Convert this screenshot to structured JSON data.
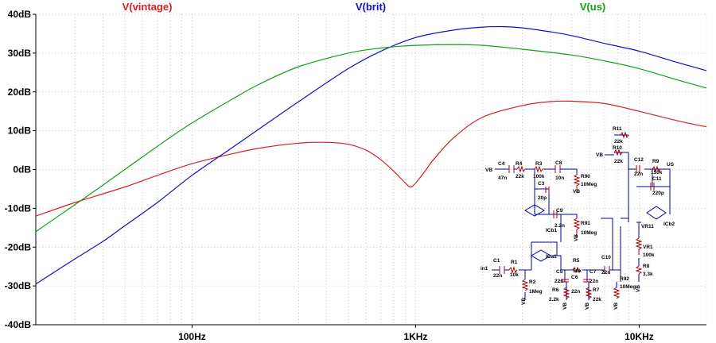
{
  "chart_data": {
    "type": "line",
    "x_scale": "log",
    "xlim": [
      20,
      20000
    ],
    "ylim": [
      -40,
      40
    ],
    "grid": true,
    "x_ticks": [
      {
        "value": 100,
        "label": "100Hz"
      },
      {
        "value": 1000,
        "label": "1KHz"
      },
      {
        "value": 10000,
        "label": "10KHz"
      }
    ],
    "y_ticks": [
      {
        "value": 40,
        "label": "40dB"
      },
      {
        "value": 30,
        "label": "30dB"
      },
      {
        "value": 20,
        "label": "20dB"
      },
      {
        "value": 10,
        "label": "10dB"
      },
      {
        "value": 0,
        "label": "0dB"
      },
      {
        "value": -10,
        "label": "-10dB"
      },
      {
        "value": -20,
        "label": "-20dB"
      },
      {
        "value": -30,
        "label": "-30dB"
      },
      {
        "value": -40,
        "label": "-40dB"
      }
    ],
    "series": [
      {
        "name": "V(vintage)",
        "color": "#d42020",
        "x": [
          20,
          30,
          50,
          70,
          100,
          150,
          200,
          300,
          400,
          500,
          600,
          700,
          800,
          900,
          950,
          1000,
          1100,
          1200,
          1500,
          2000,
          3000,
          4000,
          5000,
          7000,
          10000,
          15000,
          20000
        ],
        "y": [
          -12,
          -8.5,
          -4.5,
          -1.5,
          1.5,
          4,
          5.5,
          6.8,
          7,
          6.5,
          5,
          2.5,
          -0.5,
          -3.5,
          -4.5,
          -3.5,
          -0.5,
          2.5,
          8.5,
          13.5,
          16.5,
          17.5,
          17.6,
          17,
          15,
          12.5,
          11
        ]
      },
      {
        "name": "V(brit)",
        "color": "#1010c0",
        "x": [
          20,
          30,
          40,
          50,
          70,
          100,
          150,
          200,
          300,
          500,
          700,
          1000,
          1500,
          2000,
          2500,
          3000,
          4000,
          5000,
          7000,
          10000,
          15000,
          20000
        ],
        "y": [
          -29.5,
          -23,
          -18.5,
          -14.5,
          -8.5,
          -1.5,
          5.5,
          10.5,
          17.5,
          26,
          30.5,
          34,
          36,
          36.7,
          36.8,
          36.5,
          35.5,
          34.5,
          32.5,
          30.5,
          27.5,
          25.5
        ]
      },
      {
        "name": "V(us)",
        "color": "#10a010",
        "x": [
          20,
          30,
          40,
          50,
          70,
          100,
          150,
          200,
          300,
          500,
          700,
          1000,
          1500,
          2000,
          3000,
          5000,
          7000,
          10000,
          15000,
          20000
        ],
        "y": [
          -16,
          -9,
          -4,
          0,
          6,
          12,
          18,
          22,
          26.5,
          30,
          31.3,
          32,
          32.2,
          32,
          31,
          29.5,
          28,
          26,
          23,
          21
        ]
      }
    ]
  },
  "schematic": {
    "labels": {
      "vb1": "VB",
      "c4": "C4",
      "c4v": "47n",
      "r4": "R4",
      "r4v": "22k",
      "r3": "R3",
      "r3v": "100k",
      "c8": "C8",
      "c8v": "10n",
      "r90": "R90",
      "r90v": "10Meg",
      "c3": "C3",
      "c3v": "20p",
      "vb2": "VB",
      "c9": "C9",
      "c9v": "2.2n",
      "icb1": "ICb1",
      "r91": "R91",
      "r91v": "10Meg",
      "r11": "R11",
      "r11v": "22k",
      "vb3": "VB",
      "r10": "R10",
      "r10v": "22k",
      "c12": "C12",
      "c12v": "22n",
      "r9": "R9",
      "r9v": "150k",
      "us": "US",
      "c11": "C11",
      "c11v": "220p",
      "icb2": "ICb2",
      "vr11": "VR11",
      "vr1": "VR1",
      "vr1v": "100k",
      "r8": "R8",
      "r8v": "3.3k",
      "in1": "in1",
      "c1": "C1",
      "c1v": "22n",
      "r1": "R1",
      "r1v": "10k",
      "ica1": "ICa1",
      "r5": "R5",
      "r5v": "56k",
      "c10": "C10",
      "c10v": "22n",
      "c5": "C5",
      "c5v": "22n",
      "c6": "C6",
      "c6v": "22n",
      "c7": "C7",
      "c7v": "22n",
      "r2": "R2",
      "r2v": "1Meg",
      "r6": "R6",
      "r6v": "2.2k",
      "r7": "R7",
      "r7v": "22k",
      "r92": "R92",
      "r92v": "10Meg",
      "vb4": "VB",
      "vb5": "VB",
      "vb6": "VB",
      "vb7": "VB",
      "vb8": "VB",
      "vb9": "VB"
    }
  }
}
